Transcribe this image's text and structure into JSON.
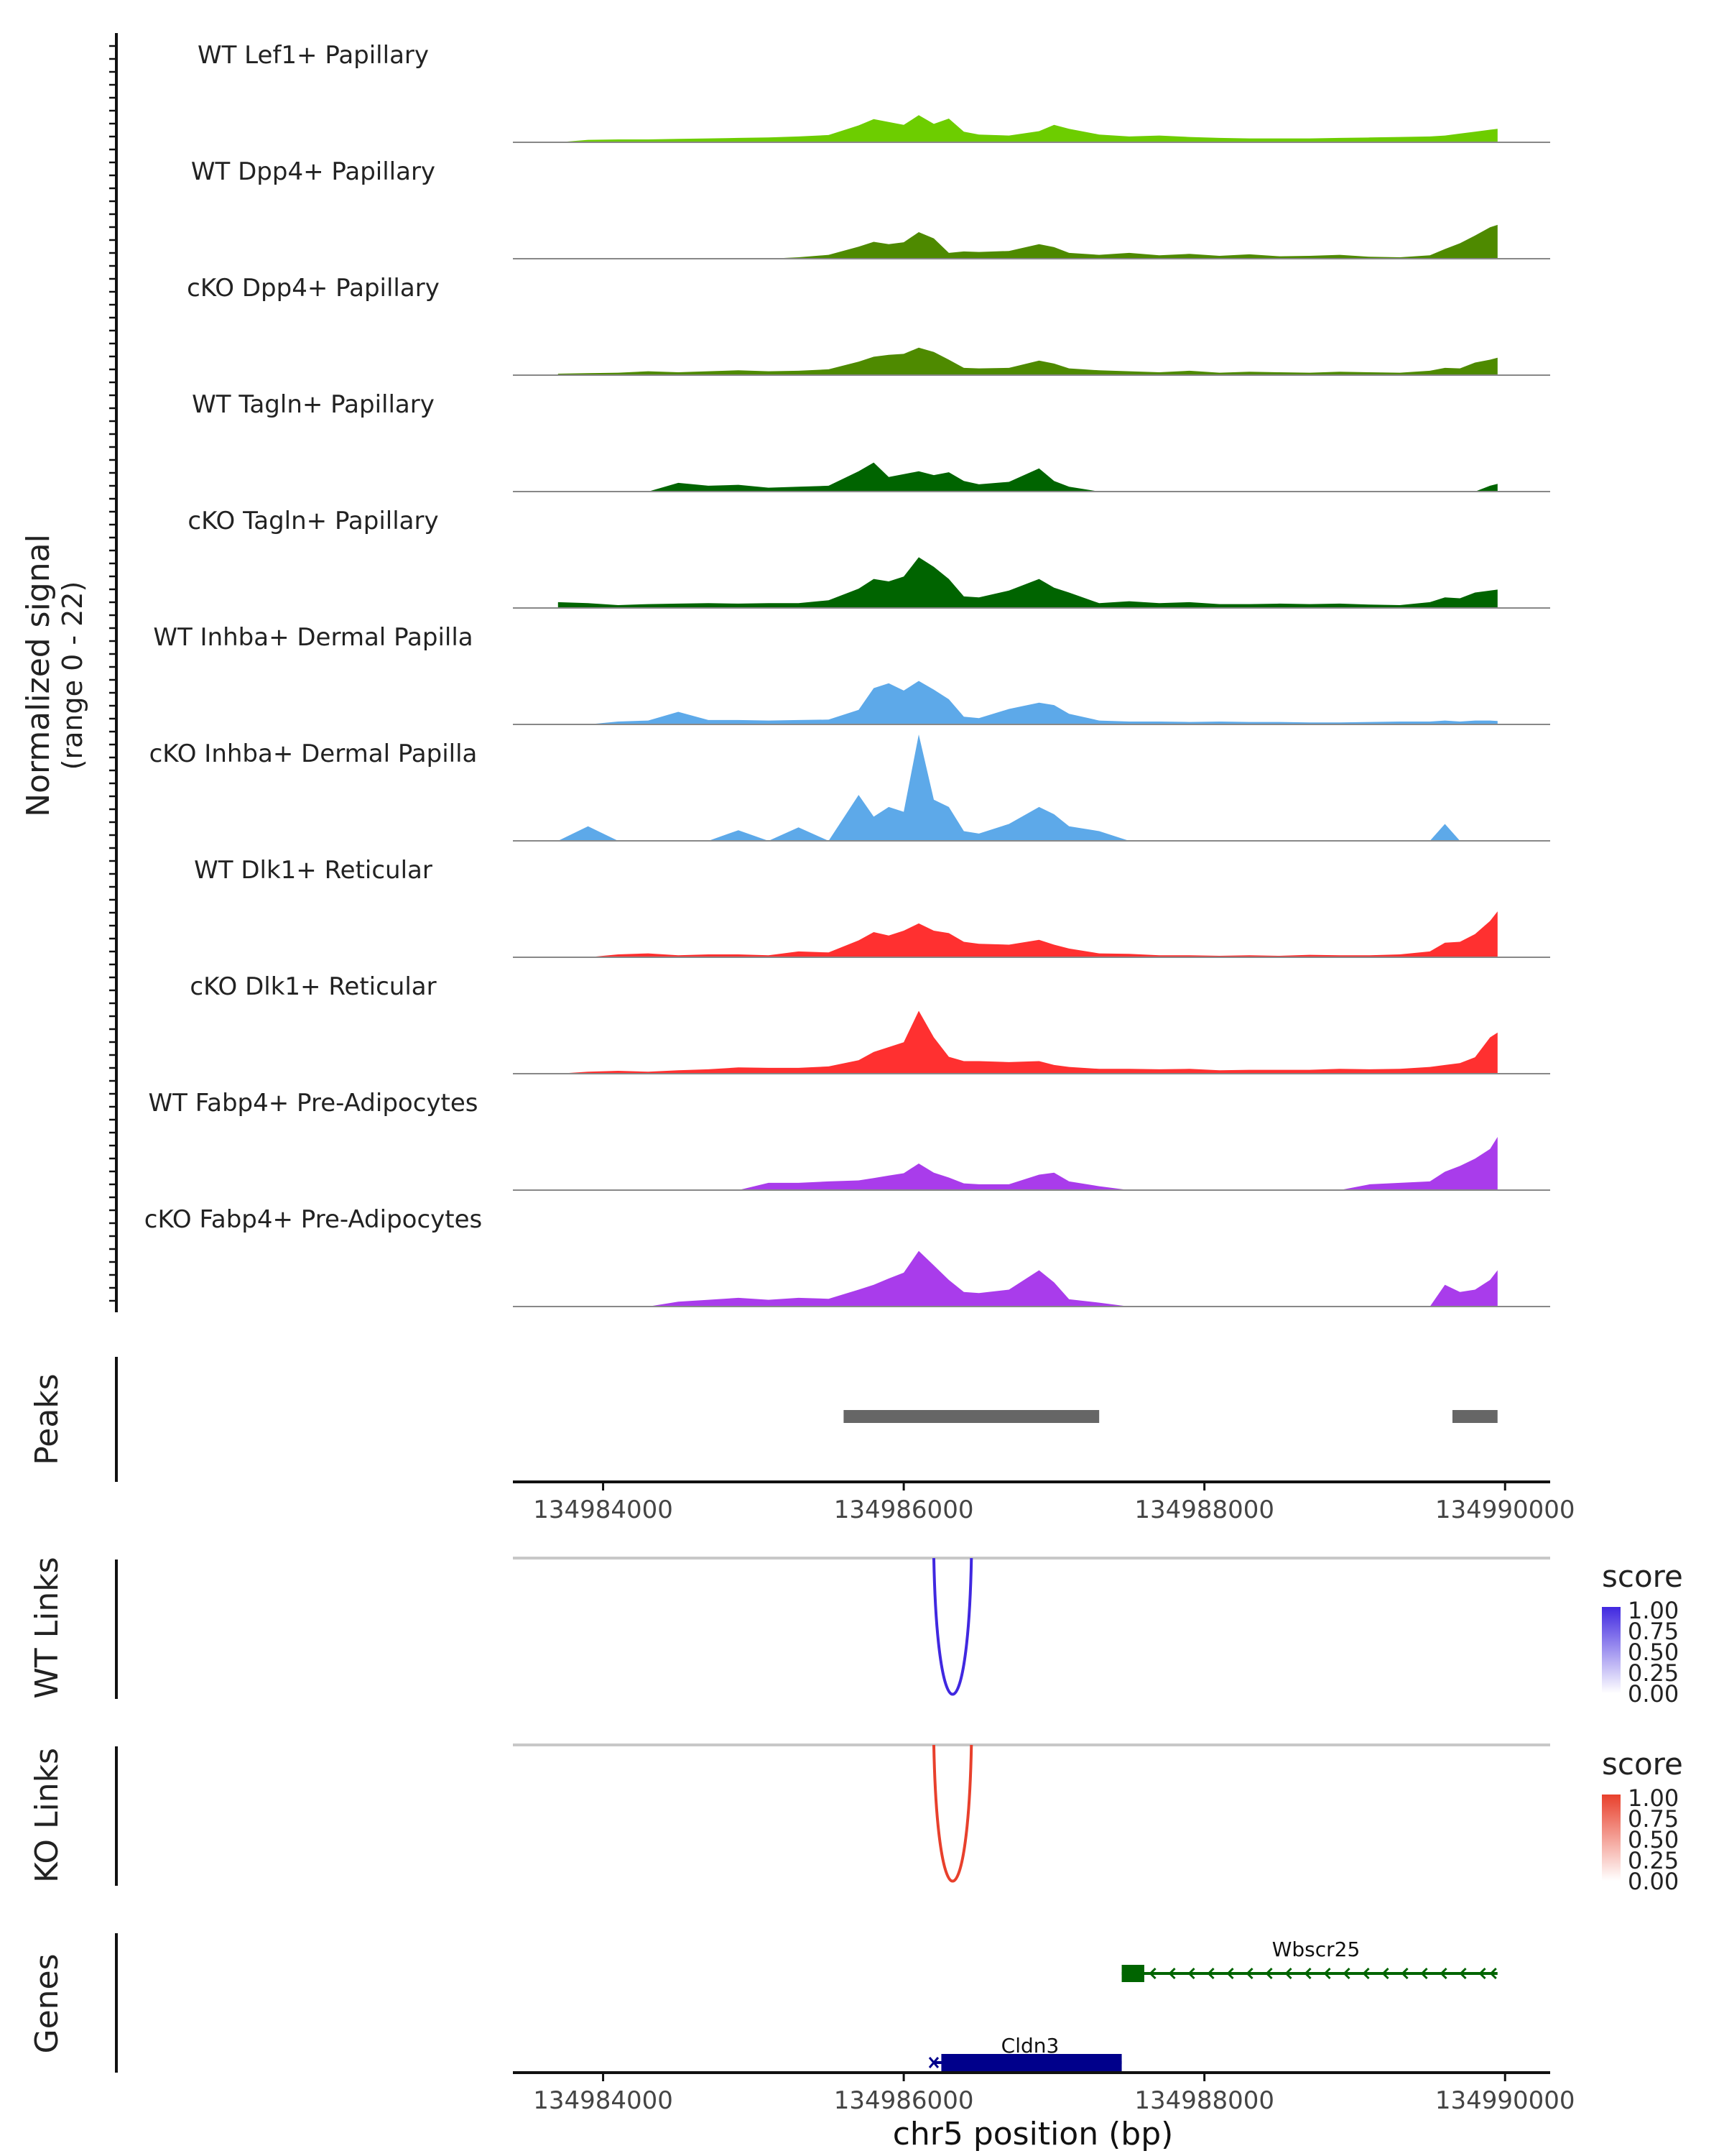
{
  "chart_data": {
    "type": "area",
    "title": "",
    "chromosome": "chr5",
    "xlabel": "chr5 position (bp)",
    "xlim": [
      134983400,
      134990300
    ],
    "xticks": [
      134984000,
      134986000,
      134988000,
      134990000
    ],
    "xtick_labels": [
      "134984000",
      "134986000",
      "134988000",
      "134990000"
    ],
    "coverage": {
      "ylabel_line1": "Normalized signal",
      "ylabel_line2": "(range 0 - 22)",
      "ylim": [
        0,
        22
      ],
      "positions": [
        134983700,
        134983900,
        134984100,
        134984300,
        134984500,
        134984700,
        134984900,
        134985100,
        134985300,
        134985500,
        134985700,
        134985800,
        134985900,
        134986000,
        134986100,
        134986200,
        134986300,
        134986400,
        134986500,
        134986700,
        134986900,
        134987000,
        134987100,
        134987300,
        134987500,
        134987700,
        134987900,
        134988100,
        134988300,
        134988500,
        134988700,
        134988900,
        134989100,
        134989300,
        134989500,
        134989600,
        134989700,
        134989800,
        134989900,
        134989950
      ],
      "tracks": [
        {
          "name": "WT Lef1+ Papillary",
          "color": "#6DCD00",
          "values": [
            0,
            0.5,
            0.6,
            0.6,
            0.7,
            0.8,
            0.9,
            1.0,
            1.2,
            1.5,
            3.5,
            4.8,
            4.2,
            3.6,
            5.6,
            3.8,
            4.9,
            2.2,
            1.6,
            1.4,
            2.3,
            3.6,
            2.8,
            1.6,
            1.2,
            1.4,
            1.1,
            0.9,
            0.8,
            0.8,
            0.8,
            0.9,
            1.0,
            1.1,
            1.2,
            1.4,
            1.8,
            2.2,
            2.6,
            2.8
          ]
        },
        {
          "name": "WT Dpp4+ Papillary",
          "color": "#4E8A00",
          "values": [
            0,
            0,
            0,
            0,
            0,
            0,
            0,
            0,
            0.3,
            0.8,
            2.5,
            3.5,
            3.0,
            3.4,
            5.5,
            4.2,
            1.2,
            1.5,
            1.4,
            1.6,
            3.0,
            2.4,
            1.2,
            0.8,
            1.2,
            0.7,
            1.0,
            0.6,
            0.9,
            0.5,
            0.6,
            0.8,
            0.4,
            0.3,
            0.7,
            2.0,
            3.2,
            4.8,
            6.5,
            7.0
          ]
        },
        {
          "name": "cKO Dpp4+ Papillary",
          "color": "#4E8A00",
          "values": [
            0.3,
            0.4,
            0.5,
            0.8,
            0.6,
            0.8,
            1.0,
            0.8,
            0.9,
            1.2,
            2.8,
            3.8,
            4.2,
            4.4,
            5.7,
            4.8,
            3.2,
            1.5,
            1.4,
            1.5,
            3.0,
            2.4,
            1.4,
            1.0,
            0.8,
            0.6,
            0.9,
            0.5,
            0.7,
            0.6,
            0.5,
            0.7,
            0.6,
            0.5,
            0.9,
            1.5,
            1.4,
            2.6,
            3.2,
            3.6
          ]
        },
        {
          "name": "WT Tagln+ Papillary",
          "color": "#006400",
          "values": [
            0,
            0,
            0,
            0,
            1.8,
            1.2,
            1.4,
            0.8,
            1.0,
            1.2,
            4.2,
            6.0,
            3.0,
            3.6,
            4.2,
            3.4,
            4.0,
            2.2,
            1.5,
            2.0,
            4.8,
            2.2,
            1.0,
            0,
            0,
            0,
            0,
            0,
            0,
            0,
            0,
            0,
            0,
            0,
            0,
            0,
            0,
            0,
            1.2,
            1.6
          ]
        },
        {
          "name": "cKO Tagln+ Papillary",
          "color": "#006400",
          "values": [
            1.2,
            1.0,
            0.6,
            0.8,
            0.9,
            1.0,
            0.9,
            1.0,
            1.0,
            1.6,
            4.0,
            6.0,
            5.5,
            6.5,
            10.5,
            8.5,
            6.0,
            2.4,
            2.2,
            3.6,
            6.0,
            4.2,
            3.2,
            1.0,
            1.4,
            1.0,
            1.2,
            0.8,
            0.8,
            0.9,
            0.8,
            0.9,
            0.7,
            0.6,
            1.2,
            2.2,
            2.0,
            3.2,
            3.6,
            3.8
          ]
        },
        {
          "name": "WT Inhba+ Dermal Papilla",
          "color": "#5DA9E9",
          "values": [
            0,
            0,
            0.6,
            0.8,
            2.6,
            0.9,
            0.9,
            0.8,
            0.9,
            1.0,
            3.0,
            7.5,
            8.5,
            7.0,
            9.0,
            7.2,
            5.2,
            1.6,
            1.3,
            3.2,
            4.5,
            4.0,
            2.2,
            0.8,
            0.6,
            0.6,
            0.5,
            0.6,
            0.5,
            0.5,
            0.4,
            0.4,
            0.5,
            0.6,
            0.6,
            0.8,
            0.6,
            0.8,
            0.8,
            0.7
          ]
        },
        {
          "name": "cKO Inhba+ Dermal Papilla",
          "color": "#5DA9E9",
          "values": [
            0,
            3.0,
            0,
            0,
            0,
            0,
            2.2,
            0,
            2.8,
            0,
            9.5,
            5.0,
            7.0,
            6.0,
            22,
            8.5,
            7.0,
            2.0,
            1.5,
            3.5,
            7.0,
            5.5,
            3.0,
            2.0,
            0,
            0,
            0,
            0,
            0,
            0,
            0,
            0,
            0,
            0,
            0,
            3.5,
            0,
            0,
            0,
            0
          ]
        },
        {
          "name": "WT Dlk1+ Reticular",
          "color": "#FF3030",
          "values": [
            0,
            0,
            0.6,
            0.8,
            0.4,
            0.6,
            0.6,
            0.4,
            1.2,
            1.0,
            3.5,
            5.2,
            4.5,
            5.5,
            7.0,
            5.5,
            5.0,
            3.2,
            2.8,
            2.6,
            3.6,
            2.6,
            1.8,
            0.8,
            0.7,
            0.4,
            0.4,
            0.3,
            0.4,
            0.3,
            0.5,
            0.4,
            0.4,
            0.6,
            1.2,
            3.0,
            3.2,
            4.8,
            7.5,
            9.5
          ]
        },
        {
          "name": "cKO Dlk1+ Reticular",
          "color": "#FF3030",
          "values": [
            0,
            0.4,
            0.6,
            0.4,
            0.7,
            0.9,
            1.3,
            1.2,
            1.2,
            1.5,
            2.8,
            4.5,
            5.5,
            6.5,
            13.0,
            7.5,
            3.5,
            2.6,
            2.6,
            2.4,
            2.6,
            1.8,
            1.4,
            1.0,
            1.0,
            0.9,
            1.0,
            0.7,
            0.8,
            0.8,
            0.8,
            1.0,
            0.9,
            1.0,
            1.4,
            1.8,
            2.2,
            3.4,
            7.5,
            8.5
          ]
        },
        {
          "name": "WT Fabp4+ Pre-Adipocytes",
          "color": "#A93CEB",
          "values": [
            0,
            0,
            0,
            0,
            0,
            0,
            0,
            1.5,
            1.5,
            1.8,
            2.0,
            2.5,
            3.0,
            3.5,
            5.5,
            3.6,
            2.6,
            1.4,
            1.2,
            1.2,
            3.2,
            3.6,
            1.8,
            0.8,
            0,
            0,
            0,
            0,
            0,
            0,
            0,
            0,
            1.2,
            1.5,
            1.8,
            3.8,
            5.0,
            6.5,
            8.5,
            11.0
          ]
        },
        {
          "name": "cKO Fabp4+ Pre-Adipocytes",
          "color": "#A93CEB",
          "values": [
            0,
            0,
            0,
            0,
            1.0,
            1.4,
            1.8,
            1.4,
            1.8,
            1.6,
            3.5,
            4.5,
            5.8,
            7.0,
            11.5,
            8.5,
            5.5,
            3.0,
            2.8,
            3.5,
            7.5,
            5.0,
            1.5,
            0.8,
            0,
            0,
            0,
            0,
            0,
            0,
            0,
            0,
            0,
            0,
            0,
            4.5,
            3.0,
            3.5,
            5.5,
            7.5
          ]
        }
      ]
    },
    "peaks": {
      "label": "Peaks",
      "color": "#666666",
      "regions": [
        [
          134985600,
          134987300
        ],
        [
          134989650,
          134989950
        ]
      ]
    },
    "links": [
      {
        "label": "WT Links",
        "legend_title": "score",
        "color": "#4028E0",
        "legend_ticks": [
          "1.00",
          "0.75",
          "0.50",
          "0.25",
          "0.00"
        ],
        "arc_start": 134986200,
        "arc_end": 134986450,
        "score": 1.0
      },
      {
        "label": "KO Links",
        "legend_title": "score",
        "color": "#E8402C",
        "legend_ticks": [
          "1.00",
          "0.75",
          "0.50",
          "0.25",
          "0.00"
        ],
        "arc_start": 134986200,
        "arc_end": 134986450,
        "score": 1.0
      }
    ],
    "genes": {
      "label": "Genes",
      "items": [
        {
          "name": "Wbscr25",
          "color": "#006400",
          "start": 134987450,
          "end": 134989950,
          "strand": "-",
          "exons": [
            [
              134987450,
              134987600
            ]
          ]
        },
        {
          "name": "Cldn3",
          "color": "#00008B",
          "start": 134986200,
          "end": 134987450,
          "strand": "-",
          "exons": [
            [
              134986250,
              134987450
            ]
          ]
        }
      ]
    }
  }
}
